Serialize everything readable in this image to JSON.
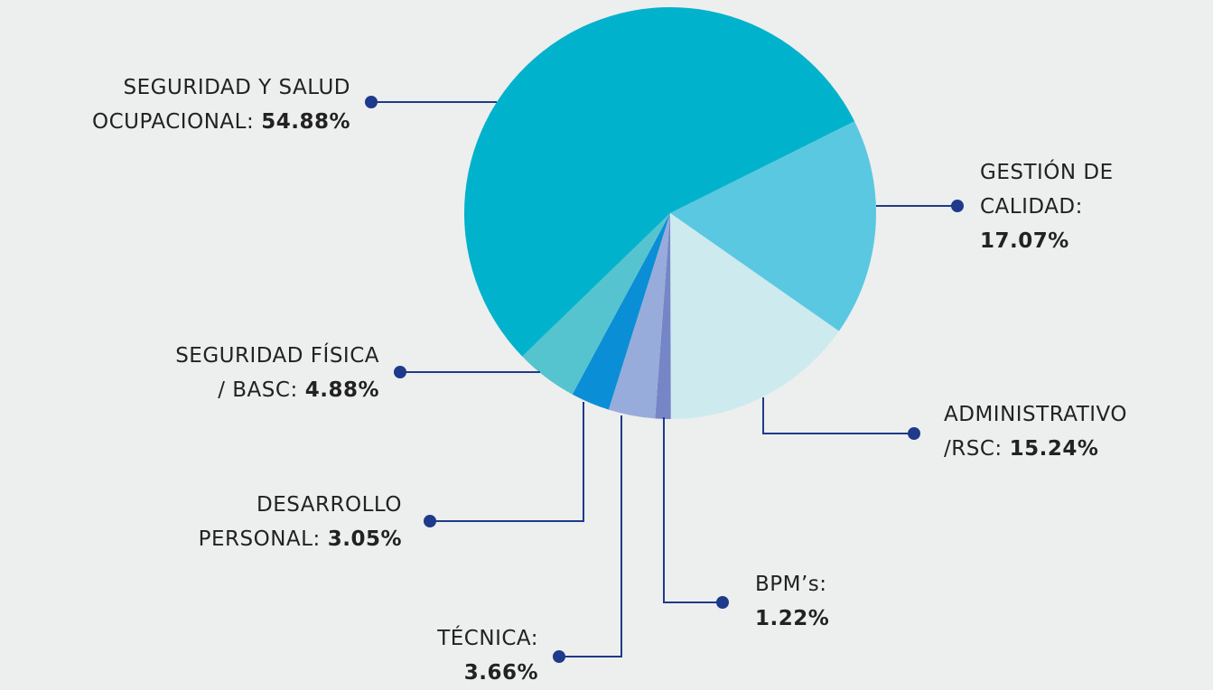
{
  "chart_data": {
    "type": "pie",
    "categories": [
      "GESTIÓN DE\nCALIDAD:",
      "ADMINISTRATIVO\n/RSC:",
      "BPM’s:",
      "TÉCNICA:",
      "DESARROLLO\nPERSONAL:",
      "SEGURIDAD FÍSICA\n/ BASC:",
      "SEGURIDAD Y SALUD\nOCUPACIONAL:"
    ],
    "values": [
      17.07,
      15.24,
      1.22,
      3.66,
      3.05,
      4.88,
      54.88
    ],
    "value_labels": [
      "17.07%",
      "15.24%",
      "1.22%",
      "3.66%",
      "3.05%",
      "4.88%",
      "54.88%"
    ],
    "colors": [
      "#5bc8e2",
      "#cdebee",
      "#7585c5",
      "#97acdb",
      "#0a8fd6",
      "#55c4cf",
      "#00b2cb"
    ]
  }
}
